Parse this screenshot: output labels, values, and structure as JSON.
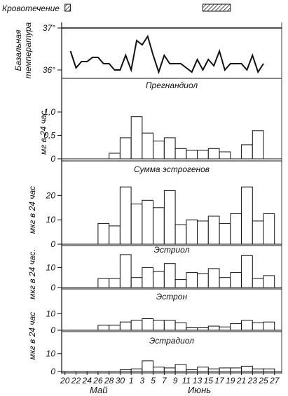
{
  "bleeding": {
    "label": "Кровотечение"
  },
  "month_labels": {
    "may": "Май",
    "june": "Июнь"
  },
  "chart_data": {
    "type": "bar",
    "x_ticks": [
      "20",
      "22",
      "24",
      "26",
      "28",
      "30",
      "1",
      "3",
      "5",
      "7",
      "9",
      "11",
      "13",
      "15",
      "17",
      "19",
      "21",
      "23",
      "25",
      "27"
    ],
    "x_tick_days": [
      20,
      22,
      24,
      26,
      28,
      30,
      32,
      34,
      36,
      38,
      40,
      42,
      44,
      46,
      48,
      50,
      52,
      54,
      56,
      58
    ],
    "bleeding_periods": [
      [
        20,
        21
      ],
      [
        45,
        50
      ]
    ],
    "panels": [
      {
        "id": "temperature",
        "type": "line",
        "ylabel": "Базальная температура",
        "y_ticks": [
          "36°",
          "37°"
        ],
        "y_tick_values": [
          36,
          37
        ],
        "ylim": [
          35.8,
          37.1
        ],
        "x": [
          21,
          22,
          23,
          24,
          25,
          26,
          27,
          28,
          29,
          30,
          31,
          32,
          33,
          34,
          35,
          36,
          37,
          38,
          39,
          40,
          41,
          42,
          43,
          44,
          45,
          46,
          47,
          48,
          49,
          50,
          51,
          52,
          53,
          54,
          55,
          56
        ],
        "values": [
          36.45,
          36.05,
          36.2,
          36.2,
          36.3,
          36.3,
          36.15,
          36.15,
          36.0,
          36.0,
          36.35,
          36.0,
          36.7,
          36.6,
          36.8,
          36.35,
          35.95,
          36.35,
          36.15,
          36.15,
          36.15,
          36.05,
          35.95,
          36.25,
          36.0,
          36.25,
          36.1,
          36.45,
          36.0,
          36.15,
          36.15,
          36.15,
          36.0,
          36.35,
          35.95,
          36.15
        ]
      },
      {
        "id": "pregnanediol",
        "type": "bar",
        "title": "Прегнандиол",
        "ylabel": "мг в 24 час.",
        "y_ticks": [
          "0",
          "0,5",
          "1,0"
        ],
        "y_tick_values": [
          0,
          0.5,
          1.0
        ],
        "ylim": [
          0,
          1.15
        ],
        "bars": [
          {
            "from": 28,
            "to": 30,
            "value": 0.12
          },
          {
            "from": 30,
            "to": 32,
            "value": 0.45
          },
          {
            "from": 32,
            "to": 34,
            "value": 0.9
          },
          {
            "from": 34,
            "to": 36,
            "value": 0.55
          },
          {
            "from": 36,
            "to": 38,
            "value": 0.38
          },
          {
            "from": 38,
            "to": 40,
            "value": 0.45
          },
          {
            "from": 40,
            "to": 42,
            "value": 0.22
          },
          {
            "from": 42,
            "to": 44,
            "value": 0.18
          },
          {
            "from": 44,
            "to": 46,
            "value": 0.18
          },
          {
            "from": 46,
            "to": 48,
            "value": 0.22
          },
          {
            "from": 48,
            "to": 50,
            "value": 0.15
          },
          {
            "from": 52,
            "to": 54,
            "value": 0.3
          },
          {
            "from": 54,
            "to": 56,
            "value": 0.6
          }
        ]
      },
      {
        "id": "total-estrogens",
        "type": "bar",
        "title": "Сумма эстрогенов",
        "ylabel": "мкг в 24 час",
        "y_ticks": [
          "0",
          "10",
          "20"
        ],
        "y_tick_values": [
          0,
          10,
          20
        ],
        "ylim": [
          0,
          27
        ],
        "bars": [
          {
            "from": 26,
            "to": 28,
            "value": 8.5
          },
          {
            "from": 28,
            "to": 30,
            "value": 7.5
          },
          {
            "from": 30,
            "to": 32,
            "value": 23.5
          },
          {
            "from": 32,
            "to": 34,
            "value": 16.5
          },
          {
            "from": 34,
            "to": 36,
            "value": 18
          },
          {
            "from": 36,
            "to": 38,
            "value": 15
          },
          {
            "from": 38,
            "to": 40,
            "value": 22
          },
          {
            "from": 40,
            "to": 42,
            "value": 8
          },
          {
            "from": 42,
            "to": 44,
            "value": 10
          },
          {
            "from": 44,
            "to": 46,
            "value": 9.5
          },
          {
            "from": 46,
            "to": 48,
            "value": 11.5
          },
          {
            "from": 48,
            "to": 50,
            "value": 8.5
          },
          {
            "from": 50,
            "to": 52,
            "value": 12.5
          },
          {
            "from": 52,
            "to": 54,
            "value": 23.5
          },
          {
            "from": 54,
            "to": 56,
            "value": 9.5
          },
          {
            "from": 56,
            "to": 58,
            "value": 12.5
          }
        ]
      },
      {
        "id": "estriol",
        "type": "bar",
        "title": "Эстриол",
        "ylabel": "мкг в 24 час.",
        "y_ticks": [
          "0",
          "10"
        ],
        "y_tick_values": [
          0,
          10
        ],
        "ylim": [
          0,
          17.5
        ],
        "bars": [
          {
            "from": 26,
            "to": 28,
            "value": 4.5
          },
          {
            "from": 28,
            "to": 30,
            "value": 4.5
          },
          {
            "from": 30,
            "to": 32,
            "value": 16.5
          },
          {
            "from": 32,
            "to": 34,
            "value": 5
          },
          {
            "from": 34,
            "to": 36,
            "value": 10
          },
          {
            "from": 36,
            "to": 38,
            "value": 8
          },
          {
            "from": 38,
            "to": 40,
            "value": 12
          },
          {
            "from": 40,
            "to": 42,
            "value": 4
          },
          {
            "from": 42,
            "to": 44,
            "value": 7.5
          },
          {
            "from": 44,
            "to": 46,
            "value": 7
          },
          {
            "from": 46,
            "to": 48,
            "value": 9.5
          },
          {
            "from": 48,
            "to": 50,
            "value": 5
          },
          {
            "from": 50,
            "to": 52,
            "value": 7.5
          },
          {
            "from": 52,
            "to": 54,
            "value": 16
          },
          {
            "from": 54,
            "to": 56,
            "value": 4.5
          },
          {
            "from": 56,
            "to": 58,
            "value": 6
          }
        ]
      },
      {
        "id": "estrone",
        "type": "bar",
        "title": "Эстрон",
        "ylabel": "",
        "y_ticks": [
          "0",
          "10"
        ],
        "y_tick_values": [
          0,
          10
        ],
        "ylim": [
          0,
          17
        ],
        "bars": [
          {
            "from": 26,
            "to": 28,
            "value": 3
          },
          {
            "from": 28,
            "to": 30,
            "value": 3
          },
          {
            "from": 30,
            "to": 32,
            "value": 5
          },
          {
            "from": 32,
            "to": 34,
            "value": 6
          },
          {
            "from": 34,
            "to": 36,
            "value": 7
          },
          {
            "from": 36,
            "to": 38,
            "value": 6
          },
          {
            "from": 38,
            "to": 40,
            "value": 6
          },
          {
            "from": 40,
            "to": 42,
            "value": 4.5
          },
          {
            "from": 42,
            "to": 44,
            "value": 1.5
          },
          {
            "from": 44,
            "to": 46,
            "value": 1.5
          },
          {
            "from": 46,
            "to": 48,
            "value": 2.5
          },
          {
            "from": 48,
            "to": 50,
            "value": 2
          },
          {
            "from": 50,
            "to": 52,
            "value": 4
          },
          {
            "from": 52,
            "to": 54,
            "value": 6
          },
          {
            "from": 54,
            "to": 56,
            "value": 4.5
          },
          {
            "from": 56,
            "to": 58,
            "value": 5
          }
        ]
      },
      {
        "id": "estradiol",
        "type": "bar",
        "title": "Эстрадиол",
        "ylabel": "",
        "y_ticks": [
          "0",
          "10"
        ],
        "y_tick_values": [
          0,
          10
        ],
        "ylim": [
          0,
          15
        ],
        "bars": [
          {
            "from": 30,
            "to": 32,
            "value": 1
          },
          {
            "from": 32,
            "to": 34,
            "value": 1.5
          },
          {
            "from": 34,
            "to": 36,
            "value": 6
          },
          {
            "from": 36,
            "to": 38,
            "value": 2.5
          },
          {
            "from": 38,
            "to": 40,
            "value": 2
          },
          {
            "from": 40,
            "to": 42,
            "value": 4
          },
          {
            "from": 42,
            "to": 44,
            "value": 1
          },
          {
            "from": 44,
            "to": 46,
            "value": 2.5
          },
          {
            "from": 46,
            "to": 48,
            "value": 1.5
          },
          {
            "from": 48,
            "to": 50,
            "value": 2
          },
          {
            "from": 50,
            "to": 52,
            "value": 2
          },
          {
            "from": 52,
            "to": 54,
            "value": 3
          },
          {
            "from": 54,
            "to": 56,
            "value": 1.5
          },
          {
            "from": 56,
            "to": 58,
            "value": 1.5
          }
        ]
      }
    ],
    "shared_ylabel": "мкг в 24 час"
  }
}
